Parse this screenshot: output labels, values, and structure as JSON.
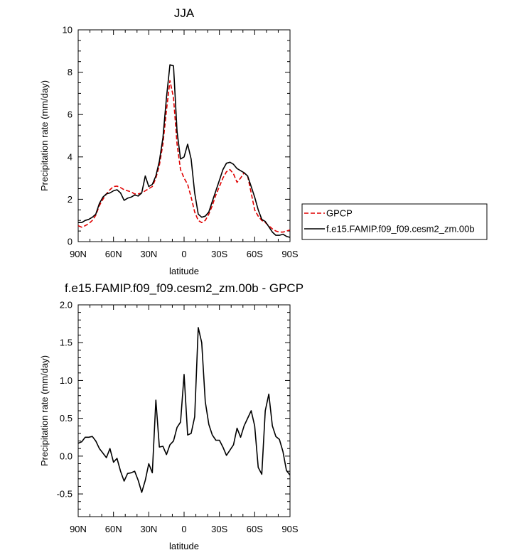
{
  "chart_data": [
    {
      "type": "line",
      "title": "JJA",
      "xlabel": "latitude",
      "ylabel": "Precipitation rate (mm/day)",
      "xlim": [
        90,
        -90
      ],
      "ylim": [
        0,
        10
      ],
      "xticks": [
        90,
        60,
        30,
        0,
        -30,
        -60,
        -90
      ],
      "xticklabels": [
        "90N",
        "60N",
        "30N",
        "0",
        "30S",
        "60S",
        "90S"
      ],
      "yticks": [
        0,
        2,
        4,
        6,
        8,
        10
      ],
      "yticklabels": [
        "0",
        "2",
        "4",
        "6",
        "8",
        "10"
      ],
      "legend": "right",
      "series": [
        {
          "name": "GPCP",
          "color": "#e00000",
          "style": "dashed",
          "x": [
            90,
            87,
            84,
            81,
            78,
            75,
            72,
            69,
            66,
            63,
            60,
            57,
            54,
            51,
            48,
            45,
            42,
            39,
            36,
            33,
            30,
            27,
            24,
            21,
            18,
            15,
            12,
            9,
            6,
            3,
            0,
            -3,
            -6,
            -9,
            -12,
            -15,
            -18,
            -21,
            -24,
            -27,
            -30,
            -33,
            -36,
            -39,
            -42,
            -45,
            -48,
            -51,
            -54,
            -57,
            -60,
            -63,
            -66,
            -69,
            -72,
            -75,
            -78,
            -81,
            -84,
            -87,
            -90
          ],
          "values": [
            0.75,
            0.68,
            0.75,
            0.85,
            1.0,
            1.25,
            1.7,
            2.0,
            2.25,
            2.45,
            2.6,
            2.62,
            2.55,
            2.45,
            2.4,
            2.35,
            2.25,
            2.25,
            2.3,
            2.4,
            2.5,
            2.6,
            3.0,
            3.6,
            4.6,
            6.2,
            7.6,
            6.8,
            4.6,
            3.4,
            3.0,
            2.7,
            2.1,
            1.4,
            1.0,
            0.9,
            1.0,
            1.3,
            1.7,
            2.2,
            2.6,
            3.0,
            3.3,
            3.4,
            3.2,
            2.8,
            3.0,
            3.25,
            3.1,
            2.3,
            1.5,
            1.2,
            1.0,
            0.9,
            0.75,
            0.6,
            0.5,
            0.45,
            0.45,
            0.5,
            0.55
          ]
        },
        {
          "name": "f.e15.FAMIP.f09_f09.cesm2_zm.00b",
          "color": "#000000",
          "style": "solid",
          "x": [
            90,
            87,
            84,
            81,
            78,
            75,
            72,
            69,
            66,
            63,
            60,
            57,
            54,
            51,
            48,
            45,
            42,
            39,
            36,
            33,
            30,
            27,
            24,
            21,
            18,
            15,
            12,
            9,
            6,
            3,
            0,
            -3,
            -6,
            -9,
            -12,
            -15,
            -18,
            -21,
            -24,
            -27,
            -30,
            -33,
            -36,
            -39,
            -42,
            -45,
            -48,
            -51,
            -54,
            -57,
            -60,
            -63,
            -66,
            -69,
            -72,
            -75,
            -78,
            -81,
            -84,
            -87,
            -90
          ],
          "values": [
            0.9,
            0.9,
            1.0,
            1.05,
            1.15,
            1.3,
            1.8,
            2.1,
            2.25,
            2.3,
            2.4,
            2.45,
            2.3,
            1.95,
            2.05,
            2.1,
            2.2,
            2.15,
            2.3,
            3.1,
            2.6,
            2.7,
            3.1,
            3.8,
            4.9,
            6.8,
            8.35,
            8.3,
            5.2,
            3.9,
            4.0,
            4.6,
            3.9,
            2.3,
            1.3,
            1.15,
            1.2,
            1.4,
            1.9,
            2.4,
            2.9,
            3.4,
            3.7,
            3.75,
            3.65,
            3.45,
            3.35,
            3.25,
            3.1,
            2.6,
            2.1,
            1.5,
            1.05,
            0.95,
            0.7,
            0.45,
            0.3,
            0.3,
            0.35,
            0.25,
            0.2
          ]
        }
      ]
    },
    {
      "type": "line",
      "title": "f.e15.FAMIP.f09_f09.cesm2_zm.00b - GPCP",
      "xlabel": "latitude",
      "ylabel": "Precipitation rate (mm/day)",
      "xlim": [
        90,
        -90
      ],
      "ylim": [
        -0.8,
        2.0
      ],
      "xticks": [
        90,
        60,
        30,
        0,
        -30,
        -60,
        -90
      ],
      "xticklabels": [
        "90N",
        "60N",
        "30N",
        "0",
        "30S",
        "60S",
        "90S"
      ],
      "yticks": [
        -0.5,
        0,
        0.5,
        1.0,
        1.5,
        2.0
      ],
      "yticklabels": [
        "-0.5",
        "0.0",
        "0.5",
        "1.0",
        "1.5",
        "2.0"
      ],
      "series": [
        {
          "color": "#000000",
          "style": "solid",
          "x": [
            90,
            87,
            84,
            81,
            78,
            75,
            72,
            69,
            66,
            63,
            60,
            57,
            54,
            51,
            48,
            45,
            42,
            39,
            36,
            33,
            30,
            27,
            24,
            21,
            18,
            15,
            12,
            9,
            6,
            3,
            0,
            -3,
            -6,
            -9,
            -12,
            -15,
            -18,
            -21,
            -24,
            -27,
            -30,
            -33,
            -36,
            -39,
            -42,
            -45,
            -48,
            -51,
            -54,
            -57,
            -60,
            -63,
            -66,
            -69,
            -72,
            -75,
            -78,
            -81,
            -84,
            -87,
            -90
          ],
          "values": [
            0.17,
            0.19,
            0.25,
            0.25,
            0.26,
            0.2,
            0.1,
            0.04,
            -0.02,
            0.1,
            -0.08,
            -0.03,
            -0.2,
            -0.33,
            -0.23,
            -0.22,
            -0.2,
            -0.32,
            -0.48,
            -0.32,
            -0.1,
            -0.22,
            0.74,
            0.12,
            0.13,
            0.02,
            0.15,
            0.2,
            0.38,
            0.45,
            1.08,
            0.28,
            0.3,
            0.52,
            1.7,
            1.5,
            0.72,
            0.42,
            0.28,
            0.21,
            0.21,
            0.12,
            0.01,
            0.08,
            0.15,
            0.37,
            0.25,
            0.4,
            0.5,
            0.6,
            0.4,
            -0.15,
            -0.24,
            0.6,
            0.82,
            0.4,
            0.26,
            0.22,
            0.06,
            -0.19,
            -0.25
          ]
        }
      ]
    }
  ]
}
